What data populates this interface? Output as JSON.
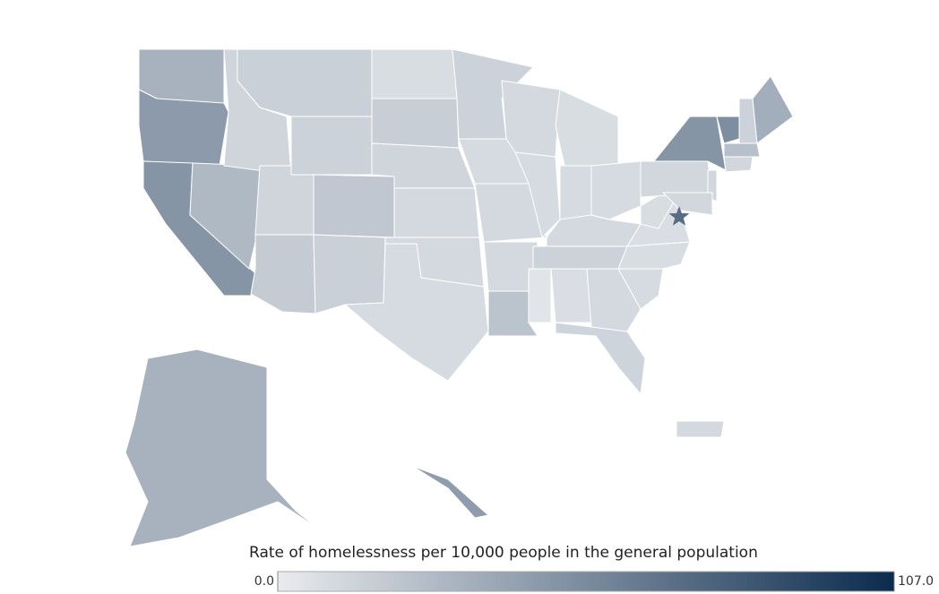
{
  "chart_data": {
    "type": "choropleth",
    "legend_title": "Rate of homelessness per 10,000 people in the general population",
    "scale_colors": [
      "#e9ebee",
      "#0b2b4e"
    ],
    "scale_ticks": [
      {
        "value": 0,
        "label": "0.0"
      },
      {
        "value": 107,
        "label": "107.0"
      }
    ],
    "values": [
      32,
      45,
      48,
      28,
      12,
      15,
      14,
      12,
      20,
      18,
      15,
      8,
      16,
      12,
      10,
      10,
      9,
      14,
      9,
      10,
      10,
      22,
      10,
      9,
      8,
      9,
      9,
      10,
      14,
      4,
      7,
      10,
      13,
      9,
      8,
      7,
      8,
      11,
      48,
      11,
      11,
      52,
      14,
      34,
      24,
      11,
      32,
      44,
      10
    ],
    "marker_value": 70
  }
}
